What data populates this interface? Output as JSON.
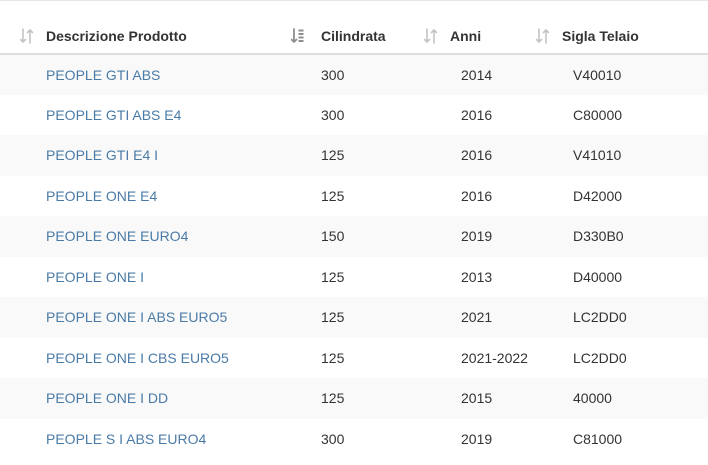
{
  "table": {
    "columns": [
      {
        "label": "Descrizione Prodotto",
        "sort": "unsorted"
      },
      {
        "label": "Cilindrata",
        "sort": "descending"
      },
      {
        "label": "Anni",
        "sort": "unsorted"
      },
      {
        "label": "Sigla Telaio",
        "sort": "unsorted"
      }
    ],
    "rows": [
      {
        "name": "PEOPLE GTI ABS",
        "cc": "300",
        "years": "2014",
        "frame": "V40010"
      },
      {
        "name": "PEOPLE GTI ABS E4",
        "cc": "300",
        "years": "2016",
        "frame": "C80000"
      },
      {
        "name": "PEOPLE GTI E4 I",
        "cc": "125",
        "years": "2016",
        "frame": "V41010"
      },
      {
        "name": "PEOPLE ONE E4",
        "cc": "125",
        "years": "2016",
        "frame": "D42000"
      },
      {
        "name": "PEOPLE ONE EURO4",
        "cc": "150",
        "years": "2019",
        "frame": "D330B0"
      },
      {
        "name": "PEOPLE ONE I",
        "cc": "125",
        "years": "2013",
        "frame": "D40000"
      },
      {
        "name": "PEOPLE ONE I ABS EURO5",
        "cc": "125",
        "years": "2021",
        "frame": "LC2DD0"
      },
      {
        "name": "PEOPLE ONE I CBS EURO5",
        "cc": "125",
        "years": "2021-2022",
        "frame": "LC2DD0"
      },
      {
        "name": "PEOPLE ONE I DD",
        "cc": "125",
        "years": "2015",
        "frame": "40000"
      },
      {
        "name": "PEOPLE S I ABS EURO4",
        "cc": "300",
        "years": "2019",
        "frame": "C81000"
      }
    ]
  },
  "colors": {
    "link": "#4a7ba7",
    "text": "#333333",
    "stripe": "#f9f9f9",
    "icon": "#c4c4c4",
    "icon_active": "#8f8f8f"
  },
  "icons": {
    "unsorted": "sort-arrows-icon",
    "descending": "sort-numeric-desc-icon"
  }
}
